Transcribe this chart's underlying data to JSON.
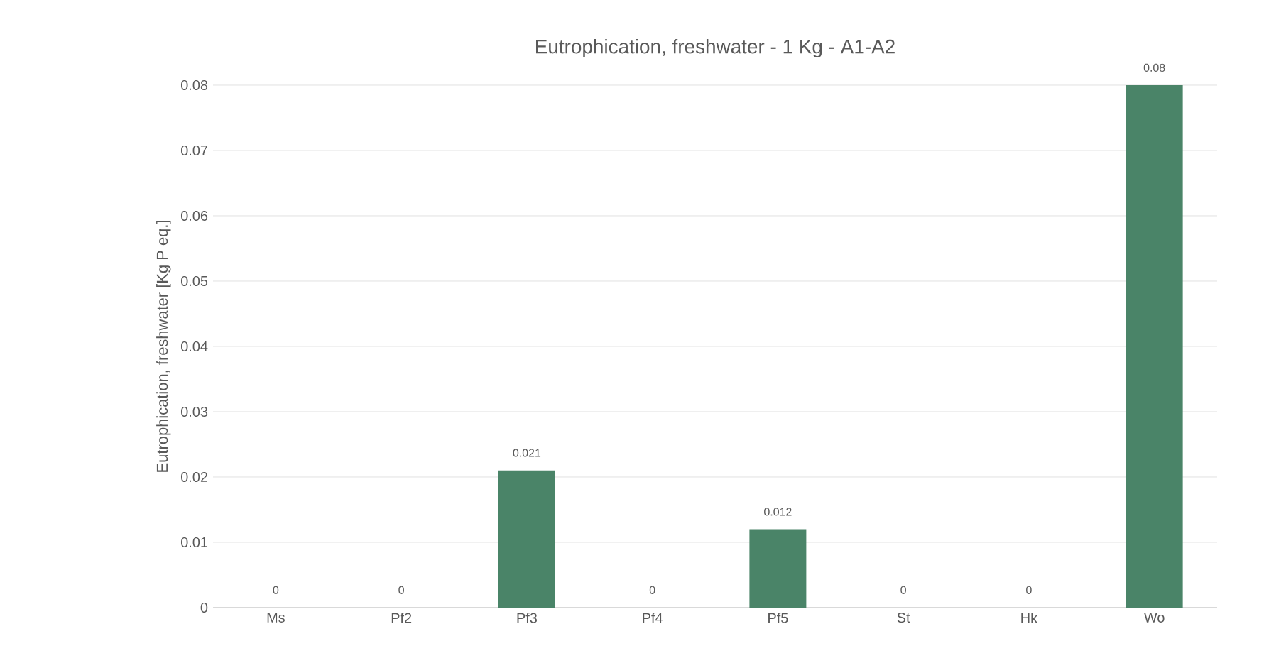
{
  "chart_data": {
    "type": "bar",
    "title": "Eutrophication, freshwater - 1 Kg - A1-A2",
    "ylabel": "Eutrophication, freshwater [Kg P eq.]",
    "categories": [
      "Ms",
      "Pf2",
      "Pf3",
      "Pf4",
      "Pf5",
      "St",
      "Hk",
      "Wo"
    ],
    "values": [
      0,
      0,
      0.021,
      0,
      0.012,
      0,
      0,
      0.08
    ],
    "color": "#4a8468",
    "ylim": [
      0,
      0.08
    ],
    "yticks": [
      0,
      0.01,
      0.02,
      0.03,
      0.04,
      0.05,
      0.06,
      0.07,
      0.08
    ],
    "grid": "y",
    "data_labels": true
  }
}
